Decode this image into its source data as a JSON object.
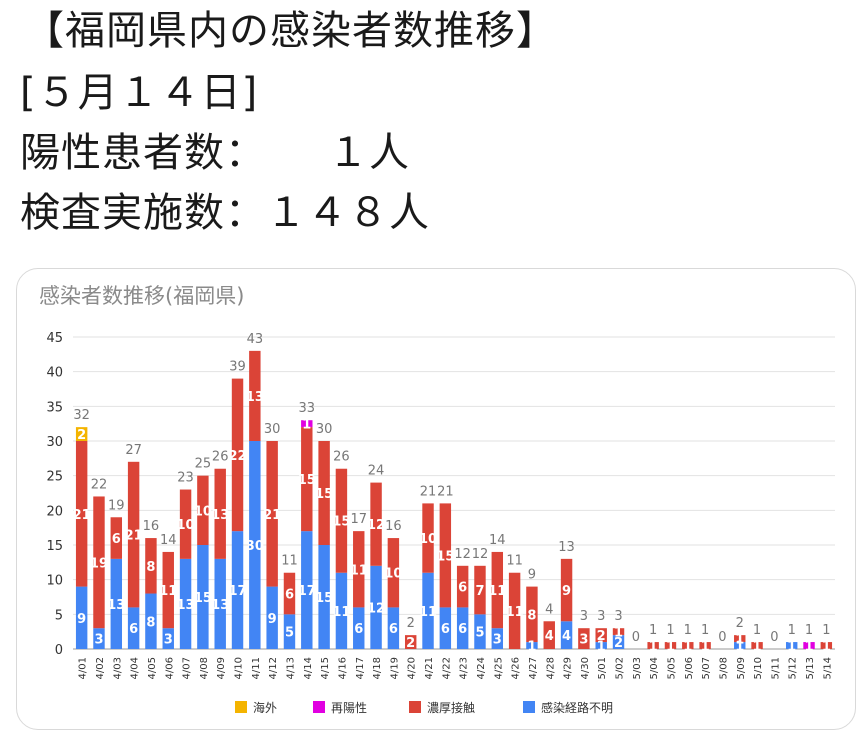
{
  "header": {
    "title": "【福岡県内の感染者数推移】",
    "date": "[５月１４日]",
    "positives": "陽性患者数：　　１人",
    "tests": "検査実施数：１４８人"
  },
  "chart_data": {
    "type": "bar",
    "stacked": true,
    "title": "感染者数推移(福岡県)",
    "xlabel": "",
    "ylabel": "",
    "ylim": [
      0,
      45
    ],
    "yticks": [
      0,
      5,
      10,
      15,
      20,
      25,
      30,
      35,
      40,
      45
    ],
    "grid": true,
    "legend_position": "bottom",
    "categories": [
      "4/01",
      "4/02",
      "4/03",
      "4/04",
      "4/05",
      "4/06",
      "4/07",
      "4/08",
      "4/09",
      "4/10",
      "4/11",
      "4/12",
      "4/13",
      "4/14",
      "4/15",
      "4/16",
      "4/17",
      "4/18",
      "4/19",
      "4/20",
      "4/21",
      "4/22",
      "4/23",
      "4/24",
      "4/25",
      "4/26",
      "4/27",
      "4/28",
      "4/29",
      "4/30",
      "5/01",
      "5/02",
      "5/03",
      "5/04",
      "5/05",
      "5/06",
      "5/07",
      "5/08",
      "5/09",
      "5/10",
      "5/11",
      "5/12",
      "5/13",
      "5/14"
    ],
    "totals": [
      32,
      22,
      19,
      27,
      16,
      14,
      23,
      25,
      26,
      39,
      43,
      30,
      11,
      33,
      30,
      26,
      17,
      24,
      16,
      2,
      21,
      21,
      12,
      12,
      14,
      11,
      9,
      4,
      13,
      3,
      3,
      3,
      0,
      1,
      1,
      1,
      1,
      0,
      2,
      1,
      0,
      1,
      1,
      1
    ],
    "series": [
      {
        "name": "感染経路不明",
        "color": "#4285f4",
        "values": [
          9,
          3,
          13,
          6,
          8,
          3,
          13,
          15,
          13,
          17,
          30,
          9,
          5,
          17,
          15,
          11,
          6,
          12,
          6,
          0,
          11,
          6,
          6,
          5,
          3,
          0,
          1,
          0,
          4,
          0,
          1,
          2,
          0,
          0,
          0,
          0,
          0,
          0,
          1,
          0,
          0,
          1,
          0,
          0
        ]
      },
      {
        "name": "濃厚接触",
        "color": "#db4437",
        "values": [
          21,
          19,
          6,
          21,
          8,
          11,
          10,
          10,
          13,
          22,
          13,
          21,
          6,
          15,
          15,
          15,
          11,
          12,
          10,
          2,
          10,
          15,
          6,
          7,
          11,
          11,
          8,
          4,
          9,
          3,
          2,
          1,
          0,
          1,
          1,
          1,
          1,
          0,
          1,
          1,
          0,
          0,
          0,
          1
        ]
      },
      {
        "name": "再陽性",
        "color": "#e100e1",
        "values": [
          0,
          0,
          0,
          0,
          0,
          0,
          0,
          0,
          0,
          0,
          0,
          0,
          0,
          1,
          0,
          0,
          0,
          0,
          0,
          0,
          0,
          0,
          0,
          0,
          0,
          0,
          0,
          0,
          0,
          0,
          0,
          0,
          0,
          0,
          0,
          0,
          0,
          0,
          0,
          0,
          0,
          0,
          1,
          0
        ]
      },
      {
        "name": "海外",
        "color": "#f4b400",
        "values": [
          2,
          0,
          0,
          0,
          0,
          0,
          0,
          0,
          0,
          0,
          0,
          0,
          0,
          0,
          0,
          0,
          0,
          0,
          0,
          0,
          0,
          0,
          0,
          0,
          0,
          0,
          0,
          0,
          0,
          0,
          0,
          0,
          0,
          0,
          0,
          0,
          0,
          0,
          0,
          0,
          0,
          0,
          0,
          0
        ]
      }
    ],
    "legend_order": [
      "海外",
      "再陽性",
      "濃厚接触",
      "感染経路不明"
    ]
  }
}
